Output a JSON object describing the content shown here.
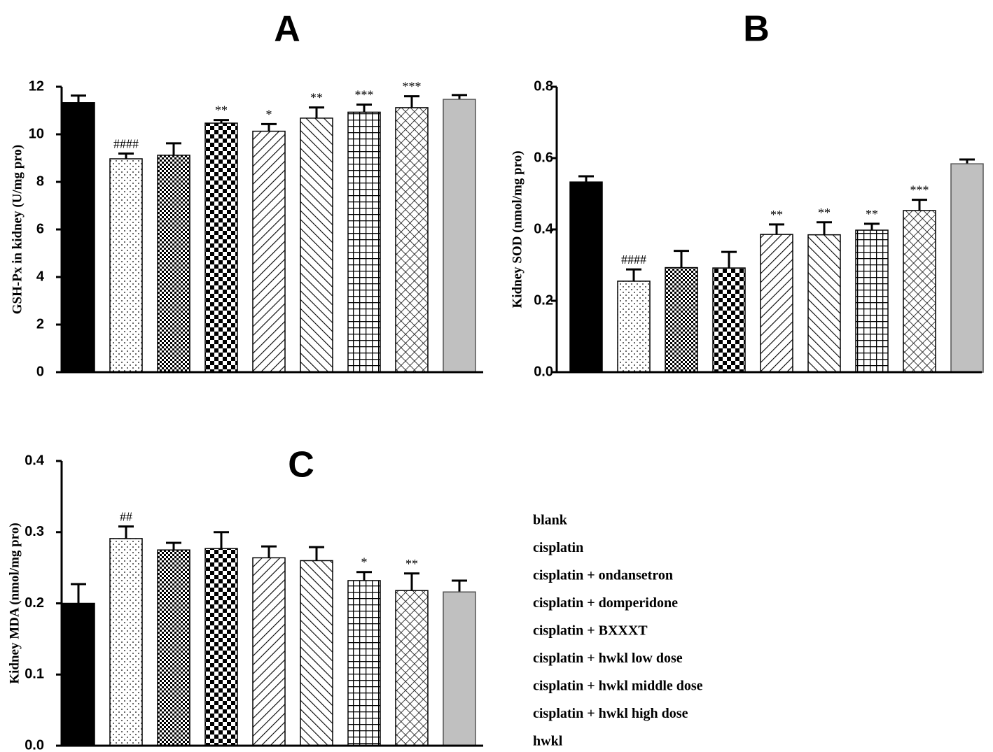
{
  "legend": [
    "blank",
    "cisplatin",
    "cisplatin + ondansetron",
    "cisplatin + domperidone",
    "cisplatin + BXXXT",
    "cisplatin + hwkl low dose",
    "cisplatin + hwkl middle dose",
    "cisplatin + hwkl high dose",
    "hwkl"
  ],
  "colors": {
    "black": "#000000",
    "gray": "#c0c0c0",
    "pattern": "#000000"
  },
  "chart_data": [
    {
      "type": "bar",
      "panel": "A",
      "ylabel": "GSH-Px in kidney (U/mg pro)",
      "ylim": [
        0,
        12
      ],
      "yticks": [
        "0",
        "2",
        "4",
        "6",
        "8",
        "10",
        "12"
      ],
      "categories": [
        "blank",
        "cisplatin",
        "cisplatin + ondansetron",
        "cisplatin + domperidone",
        "cisplatin + BXXXT",
        "cisplatin + hwkl low dose",
        "cisplatin + hwkl middle dose",
        "cisplatin + hwkl high dose",
        "hwkl"
      ],
      "values": [
        11.33,
        8.97,
        9.12,
        10.47,
        10.13,
        10.68,
        10.93,
        11.12,
        11.47
      ],
      "errors": [
        0.3,
        0.22,
        0.5,
        0.13,
        0.3,
        0.45,
        0.32,
        0.48,
        0.18
      ],
      "annotations": [
        "",
        "####",
        "",
        "**",
        "*",
        "**",
        "***",
        "***",
        ""
      ]
    },
    {
      "type": "bar",
      "panel": "B",
      "ylabel": "Kidney SOD (nmol/mg pro)",
      "ylim": [
        0,
        0.8
      ],
      "yticks": [
        "0.0",
        "0.2",
        "0.4",
        "0.6",
        "0.8"
      ],
      "categories": [
        "blank",
        "cisplatin",
        "cisplatin + ondansetron",
        "cisplatin + domperidone",
        "cisplatin + BXXXT",
        "cisplatin + hwkl low dose",
        "cisplatin + hwkl middle dose",
        "cisplatin + hwkl high dose",
        "hwkl"
      ],
      "values": [
        0.533,
        0.255,
        0.293,
        0.292,
        0.386,
        0.385,
        0.398,
        0.453,
        0.584
      ],
      "errors": [
        0.016,
        0.033,
        0.047,
        0.045,
        0.028,
        0.035,
        0.018,
        0.03,
        0.012
      ],
      "annotations": [
        "",
        "####",
        "",
        "",
        "**",
        "**",
        "**",
        "***",
        ""
      ]
    },
    {
      "type": "bar",
      "panel": "C",
      "ylabel": "Kidney MDA (nmol/mg pro)",
      "ylim": [
        0,
        0.4
      ],
      "yticks": [
        "0.0",
        "0.1",
        "0.2",
        "0.3",
        "0.4"
      ],
      "categories": [
        "blank",
        "cisplatin",
        "cisplatin + ondansetron",
        "cisplatin + domperidone",
        "cisplatin + BXXXT",
        "cisplatin + hwkl low dose",
        "cisplatin + hwkl middle dose",
        "cisplatin + hwkl high dose",
        "hwkl"
      ],
      "values": [
        0.2,
        0.291,
        0.275,
        0.277,
        0.264,
        0.26,
        0.232,
        0.218,
        0.216
      ],
      "errors": [
        0.027,
        0.017,
        0.01,
        0.023,
        0.016,
        0.019,
        0.012,
        0.024,
        0.016
      ],
      "annotations": [
        "",
        "##",
        "",
        "",
        "",
        "",
        "*",
        "**",
        ""
      ]
    }
  ]
}
